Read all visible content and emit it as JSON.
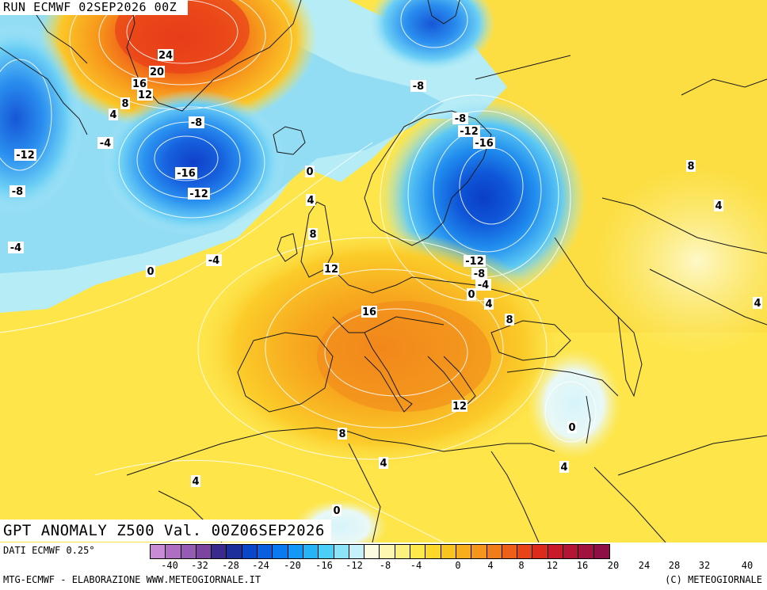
{
  "header": {
    "run_label": "RUN ECMWF 02SEP2026 00Z"
  },
  "map": {
    "title": "GPT ANOMALY Z500 Val. 00Z06SEP2026",
    "contour_labels": [
      "24",
      "20",
      "16",
      "12",
      "8",
      "4",
      "0",
      "-4",
      "-12",
      "-8",
      "-4",
      "0",
      "-8",
      "-16",
      "-12",
      "-8",
      "-12",
      "-16",
      "0",
      "4",
      "8",
      "12",
      "16",
      "-4",
      "-12",
      "-8",
      "-4",
      "0",
      "4",
      "8",
      "8",
      "4",
      "4",
      "12",
      "8",
      "4",
      "4",
      "0",
      "0",
      "4",
      "4"
    ],
    "colors": {
      "land_border": "#1a1a1a",
      "contour": "#ffffff"
    }
  },
  "legend": {
    "source": "DATI ECMWF 0.25°",
    "tick_labels": [
      "-40",
      "-32",
      "-28",
      "-24",
      "-20",
      "-16",
      "-12",
      "-8",
      "-4",
      "0",
      "4",
      "8",
      "12",
      "16",
      "20",
      "24",
      "28",
      "32",
      "40"
    ],
    "colors": [
      "#c98bd6",
      "#b06ec2",
      "#965bb3",
      "#7a44a0",
      "#3b2a8e",
      "#1c2f9c",
      "#0c46c8",
      "#0a5ee0",
      "#0a7af0",
      "#1498f7",
      "#25b5f6",
      "#4ccff6",
      "#8de4f7",
      "#c6f1fa",
      "#fbfbe0",
      "#fdf6b0",
      "#fdf07c",
      "#fde94c",
      "#fcd82a",
      "#fac420",
      "#f7ad1c",
      "#f5951b",
      "#f27b1a",
      "#ee5f18",
      "#e84418",
      "#dc2a1c",
      "#c91a2a",
      "#b41535",
      "#a1123f",
      "#8e0f45"
    ]
  },
  "footer": {
    "left": "MTG-ECMWF - ELABORAZIONE WWW.METEOGIORNALE.IT",
    "right": "(C) METEOGIORNALE"
  }
}
